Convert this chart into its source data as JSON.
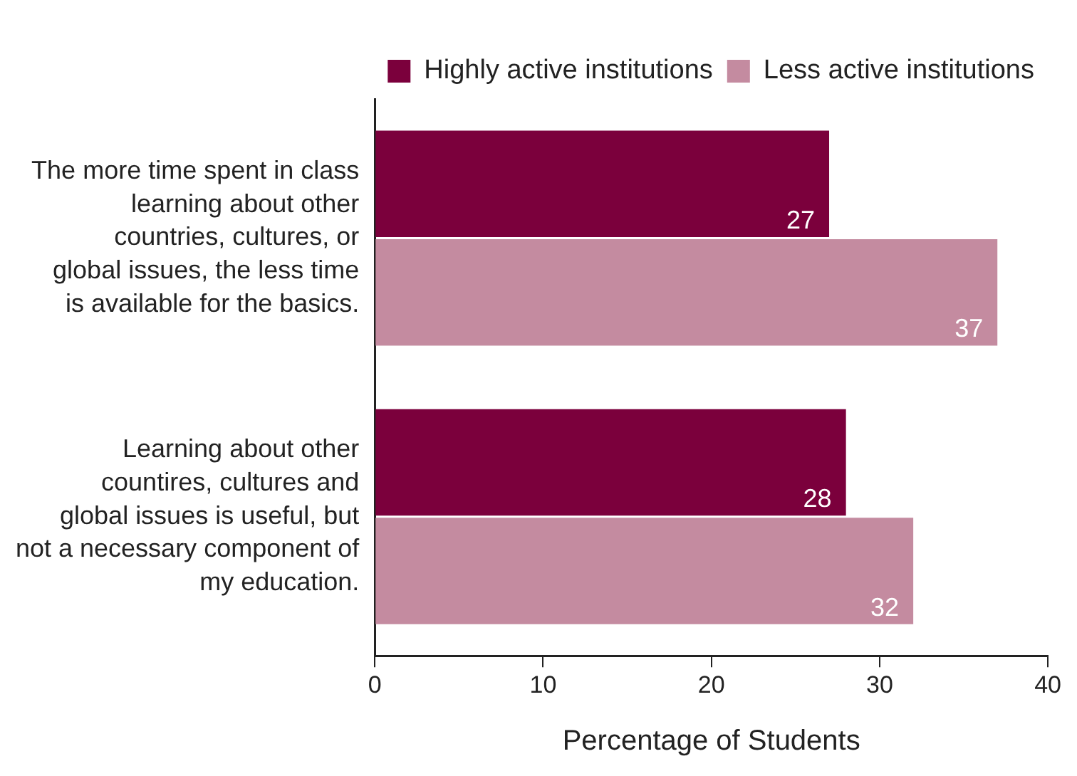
{
  "chart_data": {
    "type": "bar",
    "orientation": "horizontal",
    "xlabel": "Percentage of Students",
    "categories": [
      "The more time spent in class learning about other countries, cultures, or global issues, the less time is available for the basics.",
      "Learning about other countires, cultures and global issues is useful, but not a necessary component of my education."
    ],
    "series": [
      {
        "name": "Highly active institutions",
        "color": "#7b003c",
        "values": [
          27,
          28
        ]
      },
      {
        "name": "Less active institutions",
        "color": "#c48ba0",
        "values": [
          37,
          32
        ]
      }
    ],
    "xlim": [
      0,
      40
    ],
    "xticks": [
      0,
      10,
      20,
      30,
      40
    ],
    "grid": false,
    "legend": "top right",
    "data_labels": true
  }
}
